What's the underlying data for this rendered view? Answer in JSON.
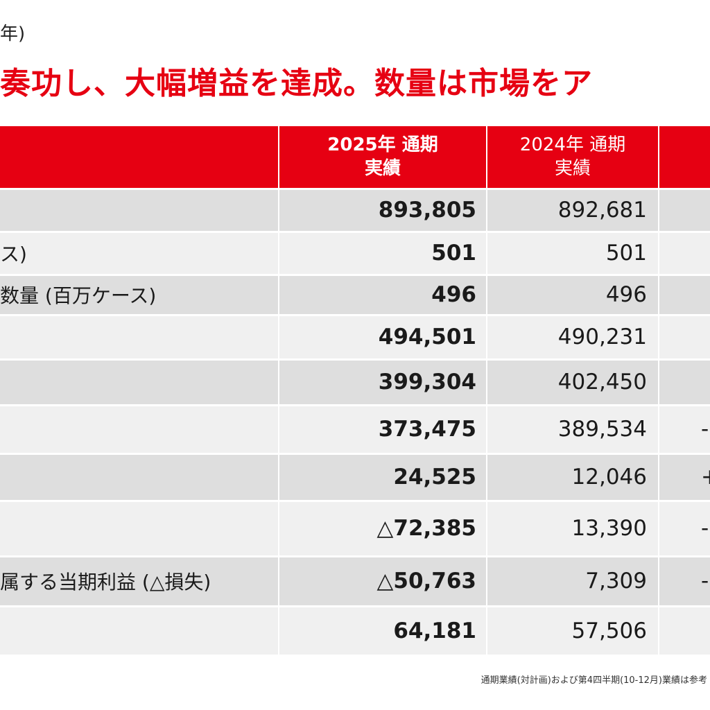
{
  "subtitle": "年)",
  "headline": "奏功し、大幅増益を達成。数量は市場をア",
  "table": {
    "headers": {
      "label": "",
      "y2025_line1": "2025年 通期",
      "y2025_line2": "実績",
      "y2024_line1": "2024年 通期",
      "y2024_line2": "実績",
      "diff": ""
    },
    "rows": [
      {
        "label": "",
        "y2025": "893,805",
        "y2024": "892,681",
        "diff": ""
      },
      {
        "label": "ス)",
        "y2025": "501",
        "y2024": "501",
        "diff": ""
      },
      {
        "label": "数量 (百万ケース)",
        "y2025": "496",
        "y2024": "496",
        "diff": ""
      },
      {
        "label": "",
        "y2025": "494,501",
        "y2024": "490,231",
        "diff": ""
      },
      {
        "label": "",
        "y2025": "399,304",
        "y2024": "402,450",
        "diff": ""
      },
      {
        "label": "",
        "y2025": "373,475",
        "y2024": "389,534",
        "diff": "-"
      },
      {
        "label": "",
        "y2025": "24,525",
        "y2024": "12,046",
        "diff": "+"
      },
      {
        "label": "",
        "y2025": "△72,385",
        "y2024": "13,390",
        "diff": "-"
      },
      {
        "label": "属する当期利益 (△損失)",
        "y2025": "△50,763",
        "y2024": "7,309",
        "diff": "-"
      },
      {
        "label": "",
        "y2025": "64,181",
        "y2024": "57,506",
        "diff": ""
      }
    ]
  },
  "footnote": "通期業績(対計画)および第4四半期(10-12月)業績は参考"
}
